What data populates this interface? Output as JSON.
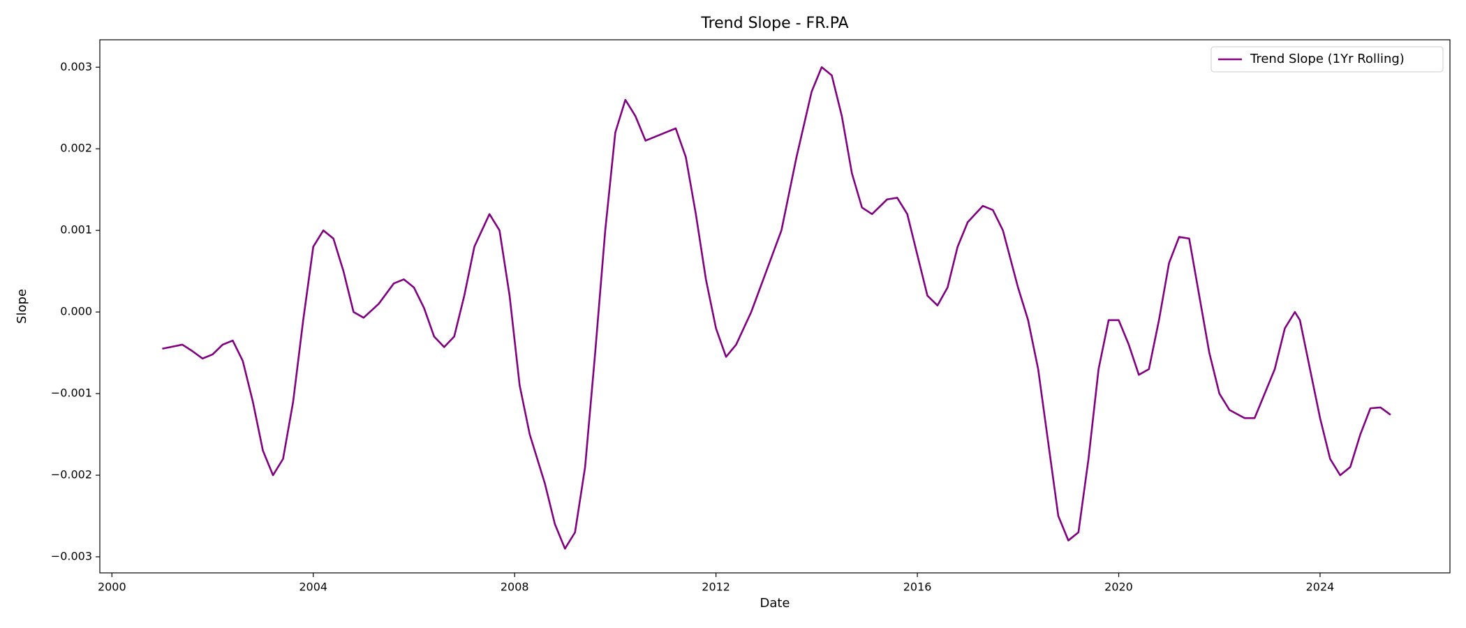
{
  "chart_data": {
    "type": "line",
    "title": "Trend Slope - FR.PA",
    "x_label": "Date",
    "y_label": "Slope",
    "x": [
      2001.0,
      2001.4,
      2001.6,
      2001.8,
      2002.0,
      2002.2,
      2002.4,
      2002.6,
      2002.8,
      2003.0,
      2003.2,
      2003.4,
      2003.6,
      2003.8,
      2004.0,
      2004.2,
      2004.4,
      2004.6,
      2004.8,
      2005.0,
      2005.3,
      2005.6,
      2005.8,
      2006.0,
      2006.2,
      2006.4,
      2006.6,
      2006.8,
      2007.0,
      2007.2,
      2007.5,
      2007.7,
      2007.9,
      2008.1,
      2008.3,
      2008.6,
      2008.8,
      2009.0,
      2009.2,
      2009.4,
      2009.6,
      2009.8,
      2010.0,
      2010.2,
      2010.4,
      2010.6,
      2010.8,
      2011.0,
      2011.2,
      2011.4,
      2011.6,
      2011.8,
      2012.0,
      2012.2,
      2012.4,
      2012.7,
      2013.0,
      2013.3,
      2013.6,
      2013.9,
      2014.1,
      2014.3,
      2014.5,
      2014.7,
      2014.9,
      2015.1,
      2015.4,
      2015.6,
      2015.8,
      2016.0,
      2016.2,
      2016.4,
      2016.6,
      2016.8,
      2017.0,
      2017.3,
      2017.5,
      2017.7,
      2018.0,
      2018.2,
      2018.4,
      2018.6,
      2018.8,
      2019.0,
      2019.2,
      2019.4,
      2019.6,
      2019.8,
      2020.0,
      2020.2,
      2020.4,
      2020.6,
      2020.8,
      2021.0,
      2021.2,
      2021.4,
      2021.6,
      2021.8,
      2022.0,
      2022.2,
      2022.5,
      2022.7,
      2022.9,
      2023.1,
      2023.3,
      2023.5,
      2023.6,
      2023.8,
      2024.0,
      2024.2,
      2024.4,
      2024.6,
      2024.8,
      2025.0,
      2025.2,
      2025.4
    ],
    "series": [
      {
        "name": "Trend Slope (1Yr Rolling)",
        "color": "#800080",
        "values": [
          -0.00045,
          -0.0004,
          -0.00048,
          -0.00057,
          -0.00052,
          -0.0004,
          -0.00035,
          -0.0006,
          -0.0011,
          -0.0017,
          -0.002,
          -0.0018,
          -0.0011,
          -0.0001,
          0.0008,
          0.001,
          0.0009,
          0.0005,
          0.0,
          -7e-05,
          0.0001,
          0.00035,
          0.0004,
          0.0003,
          5e-05,
          -0.0003,
          -0.00043,
          -0.0003,
          0.0002,
          0.0008,
          0.0012,
          0.001,
          0.0002,
          -0.0009,
          -0.0015,
          -0.0021,
          -0.0026,
          -0.0029,
          -0.0027,
          -0.0019,
          -0.0005,
          0.001,
          0.0022,
          0.0026,
          0.0024,
          0.0021,
          0.00215,
          0.0022,
          0.00225,
          0.0019,
          0.0012,
          0.0004,
          -0.0002,
          -0.00055,
          -0.0004,
          0.0,
          0.0005,
          0.001,
          0.0019,
          0.0027,
          0.003,
          0.0029,
          0.0024,
          0.0017,
          0.00128,
          0.0012,
          0.00138,
          0.0014,
          0.0012,
          0.0007,
          0.0002,
          8e-05,
          0.0003,
          0.0008,
          0.0011,
          0.0013,
          0.00125,
          0.001,
          0.0003,
          -0.0001,
          -0.0007,
          -0.0016,
          -0.0025,
          -0.0028,
          -0.0027,
          -0.0018,
          -0.0007,
          -0.0001,
          -0.0001,
          -0.0004,
          -0.00077,
          -0.0007,
          -0.0001,
          0.0006,
          0.00092,
          0.0009,
          0.0002,
          -0.0005,
          -0.001,
          -0.0012,
          -0.0013,
          -0.0013,
          -0.001,
          -0.0007,
          -0.0002,
          0.0,
          -0.0001,
          -0.0007,
          -0.0013,
          -0.0018,
          -0.002,
          -0.0019,
          -0.0015,
          -0.00118,
          -0.00117,
          -0.00126
        ]
      }
    ],
    "xlim": [
      1999.76,
      2026.58
    ],
    "xticks": [
      2000,
      2004,
      2008,
      2012,
      2016,
      2020,
      2024
    ],
    "ylim": [
      -0.003197,
      0.003336
    ],
    "yticks": [
      {
        "value": -0.003,
        "label": "−0.003"
      },
      {
        "value": -0.002,
        "label": "−0.002"
      },
      {
        "value": -0.001,
        "label": "−0.001"
      },
      {
        "value": 0,
        "label": "0.000"
      },
      {
        "value": 0.001,
        "label": "0.001"
      },
      {
        "value": 0.002,
        "label": "0.002"
      },
      {
        "value": 0.003,
        "label": "0.003"
      }
    ],
    "grid": false,
    "legend": "upper-right"
  }
}
